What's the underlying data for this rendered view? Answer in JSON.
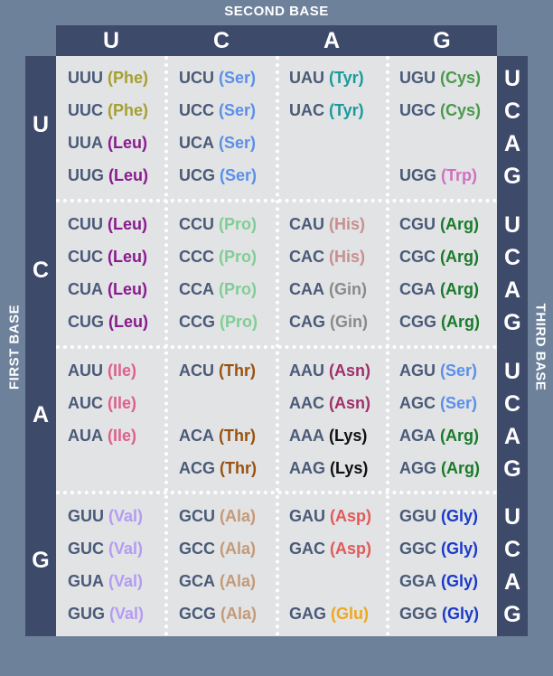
{
  "axis_labels": {
    "second": "SECOND BASE",
    "first": "FIRST BASE",
    "third": "THIRD BASE"
  },
  "second_bases": [
    "U",
    "C",
    "A",
    "G"
  ],
  "first_bases": [
    "U",
    "C",
    "A",
    "G"
  ],
  "third_bases": [
    "U",
    "C",
    "A",
    "G",
    "U",
    "C",
    "A",
    "G",
    "U",
    "C",
    "A",
    "G",
    "U",
    "C",
    "A",
    "G"
  ],
  "colors": {
    "background": "#6e819b",
    "bars": "#3e4a6a",
    "grid": "#e1e3e5",
    "codon_text": "#4a5a78",
    "Phe": "#a5a032",
    "Leu": "#8a1a8e",
    "Ile": "#e0608a",
    "Val": "#b49cf2",
    "Ser": "#5b8fe8",
    "Pro": "#7fce94",
    "Thr": "#9a5210",
    "Ala": "#c49a78",
    "Tyr": "#1a9a9c",
    "His": "#c98f8f",
    "Gin": "#8a8a8a",
    "Asn": "#a0306a",
    "Lys": "#111111",
    "Asp": "#e05a5a",
    "Glu": "#f0a820",
    "Cys": "#4a9a4a",
    "Trp": "#d070c0",
    "Arg": "#1a7a2a",
    "Gly": "#1a3ac8"
  },
  "codons": [
    {
      "codon": "UUU",
      "aa": "(Phe)",
      "key": "Phe",
      "row": 0,
      "col": 0
    },
    {
      "codon": "UUC",
      "aa": "(Phe)",
      "key": "Phe",
      "row": 1,
      "col": 0
    },
    {
      "codon": "UUA",
      "aa": "(Leu)",
      "key": "Leu",
      "row": 2,
      "col": 0
    },
    {
      "codon": "UUG",
      "aa": "(Leu)",
      "key": "Leu",
      "row": 3,
      "col": 0
    },
    {
      "codon": "UCU",
      "aa": "(Ser)",
      "key": "Ser",
      "row": 0,
      "col": 1
    },
    {
      "codon": "UCC",
      "aa": "(Ser)",
      "key": "Ser",
      "row": 1,
      "col": 1
    },
    {
      "codon": "UCA",
      "aa": "(Ser)",
      "key": "Ser",
      "row": 2,
      "col": 1
    },
    {
      "codon": "UCG",
      "aa": "(Ser)",
      "key": "Ser",
      "row": 3,
      "col": 1
    },
    {
      "codon": "UAU",
      "aa": "(Tyr)",
      "key": "Tyr",
      "row": 0,
      "col": 2
    },
    {
      "codon": "UAC",
      "aa": "(Tyr)",
      "key": "Tyr",
      "row": 1,
      "col": 2
    },
    {
      "codon": "UGU",
      "aa": "(Cys)",
      "key": "Cys",
      "row": 0,
      "col": 3
    },
    {
      "codon": "UGC",
      "aa": "(Cys)",
      "key": "Cys",
      "row": 1,
      "col": 3
    },
    {
      "codon": "UGG",
      "aa": "(Trp)",
      "key": "Trp",
      "row": 3,
      "col": 3
    },
    {
      "codon": "CUU",
      "aa": "(Leu)",
      "key": "Leu",
      "row": 4,
      "col": 0
    },
    {
      "codon": "CUC",
      "aa": "(Leu)",
      "key": "Leu",
      "row": 5,
      "col": 0
    },
    {
      "codon": "CUA",
      "aa": "(Leu)",
      "key": "Leu",
      "row": 6,
      "col": 0
    },
    {
      "codon": "CUG",
      "aa": "(Leu)",
      "key": "Leu",
      "row": 7,
      "col": 0
    },
    {
      "codon": "CCU",
      "aa": "(Pro)",
      "key": "Pro",
      "row": 4,
      "col": 1
    },
    {
      "codon": "CCC",
      "aa": "(Pro)",
      "key": "Pro",
      "row": 5,
      "col": 1
    },
    {
      "codon": "CCA",
      "aa": "(Pro)",
      "key": "Pro",
      "row": 6,
      "col": 1
    },
    {
      "codon": "CCG",
      "aa": "(Pro)",
      "key": "Pro",
      "row": 7,
      "col": 1
    },
    {
      "codon": "CAU",
      "aa": "(His)",
      "key": "His",
      "row": 4,
      "col": 2
    },
    {
      "codon": "CAC",
      "aa": "(His)",
      "key": "His",
      "row": 5,
      "col": 2
    },
    {
      "codon": "CAA",
      "aa": "(Gin)",
      "key": "Gin",
      "row": 6,
      "col": 2
    },
    {
      "codon": "CAG",
      "aa": "(Gin)",
      "key": "Gin",
      "row": 7,
      "col": 2
    },
    {
      "codon": "CGU",
      "aa": "(Arg)",
      "key": "Arg",
      "row": 4,
      "col": 3
    },
    {
      "codon": "CGC",
      "aa": "(Arg)",
      "key": "Arg",
      "row": 5,
      "col": 3
    },
    {
      "codon": "CGA",
      "aa": "(Arg)",
      "key": "Arg",
      "row": 6,
      "col": 3
    },
    {
      "codon": "CGG",
      "aa": "(Arg)",
      "key": "Arg",
      "row": 7,
      "col": 3
    },
    {
      "codon": "AUU",
      "aa": "(Ile)",
      "key": "Ile",
      "row": 8,
      "col": 0
    },
    {
      "codon": "AUC",
      "aa": "(Ile)",
      "key": "Ile",
      "row": 9,
      "col": 0
    },
    {
      "codon": "AUA",
      "aa": "(Ile)",
      "key": "Ile",
      "row": 10,
      "col": 0
    },
    {
      "codon": "ACU",
      "aa": "(Thr)",
      "key": "Thr",
      "row": 8,
      "col": 1
    },
    {
      "codon": "ACA",
      "aa": "(Thr)",
      "key": "Thr",
      "row": 10,
      "col": 1
    },
    {
      "codon": "ACG",
      "aa": "(Thr)",
      "key": "Thr",
      "row": 11,
      "col": 1
    },
    {
      "codon": "AAU",
      "aa": "(Asn)",
      "key": "Asn",
      "row": 8,
      "col": 2
    },
    {
      "codon": "AAC",
      "aa": "(Asn)",
      "key": "Asn",
      "row": 9,
      "col": 2
    },
    {
      "codon": "AAA",
      "aa": "(Lys)",
      "key": "Lys",
      "row": 10,
      "col": 2
    },
    {
      "codon": "AAG",
      "aa": "(Lys)",
      "key": "Lys",
      "row": 11,
      "col": 2
    },
    {
      "codon": "AGU",
      "aa": "(Ser)",
      "key": "Ser",
      "row": 8,
      "col": 3
    },
    {
      "codon": "AGC",
      "aa": "(Ser)",
      "key": "Ser",
      "row": 9,
      "col": 3
    },
    {
      "codon": "AGA",
      "aa": "(Arg)",
      "key": "Arg",
      "row": 10,
      "col": 3
    },
    {
      "codon": "AGG",
      "aa": "(Arg)",
      "key": "Arg",
      "row": 11,
      "col": 3
    },
    {
      "codon": "GUU",
      "aa": "(Val)",
      "key": "Val",
      "row": 12,
      "col": 0
    },
    {
      "codon": "GUC",
      "aa": "(Val)",
      "key": "Val",
      "row": 13,
      "col": 0
    },
    {
      "codon": "GUA",
      "aa": "(Val)",
      "key": "Val",
      "row": 14,
      "col": 0
    },
    {
      "codon": "GUG",
      "aa": "(Val)",
      "key": "Val",
      "row": 15,
      "col": 0
    },
    {
      "codon": "GCU",
      "aa": "(Ala)",
      "key": "Ala",
      "row": 12,
      "col": 1
    },
    {
      "codon": "GCC",
      "aa": "(Ala)",
      "key": "Ala",
      "row": 13,
      "col": 1
    },
    {
      "codon": "GCA",
      "aa": "(Ala)",
      "key": "Ala",
      "row": 14,
      "col": 1
    },
    {
      "codon": "GCG",
      "aa": "(Ala)",
      "key": "Ala",
      "row": 15,
      "col": 1
    },
    {
      "codon": "GAU",
      "aa": "(Asp)",
      "key": "Asp",
      "row": 12,
      "col": 2
    },
    {
      "codon": "GAC",
      "aa": "(Asp)",
      "key": "Asp",
      "row": 13,
      "col": 2
    },
    {
      "codon": "GAG",
      "aa": "(Glu)",
      "key": "Glu",
      "row": 15,
      "col": 2
    },
    {
      "codon": "GGU",
      "aa": "(Gly)",
      "key": "Gly",
      "row": 12,
      "col": 3
    },
    {
      "codon": "GGC",
      "aa": "(Gly)",
      "key": "Gly",
      "row": 13,
      "col": 3
    },
    {
      "codon": "GGA",
      "aa": "(Gly)",
      "key": "Gly",
      "row": 14,
      "col": 3
    },
    {
      "codon": "GGG",
      "aa": "(Gly)",
      "key": "Gly",
      "row": 15,
      "col": 3
    }
  ]
}
